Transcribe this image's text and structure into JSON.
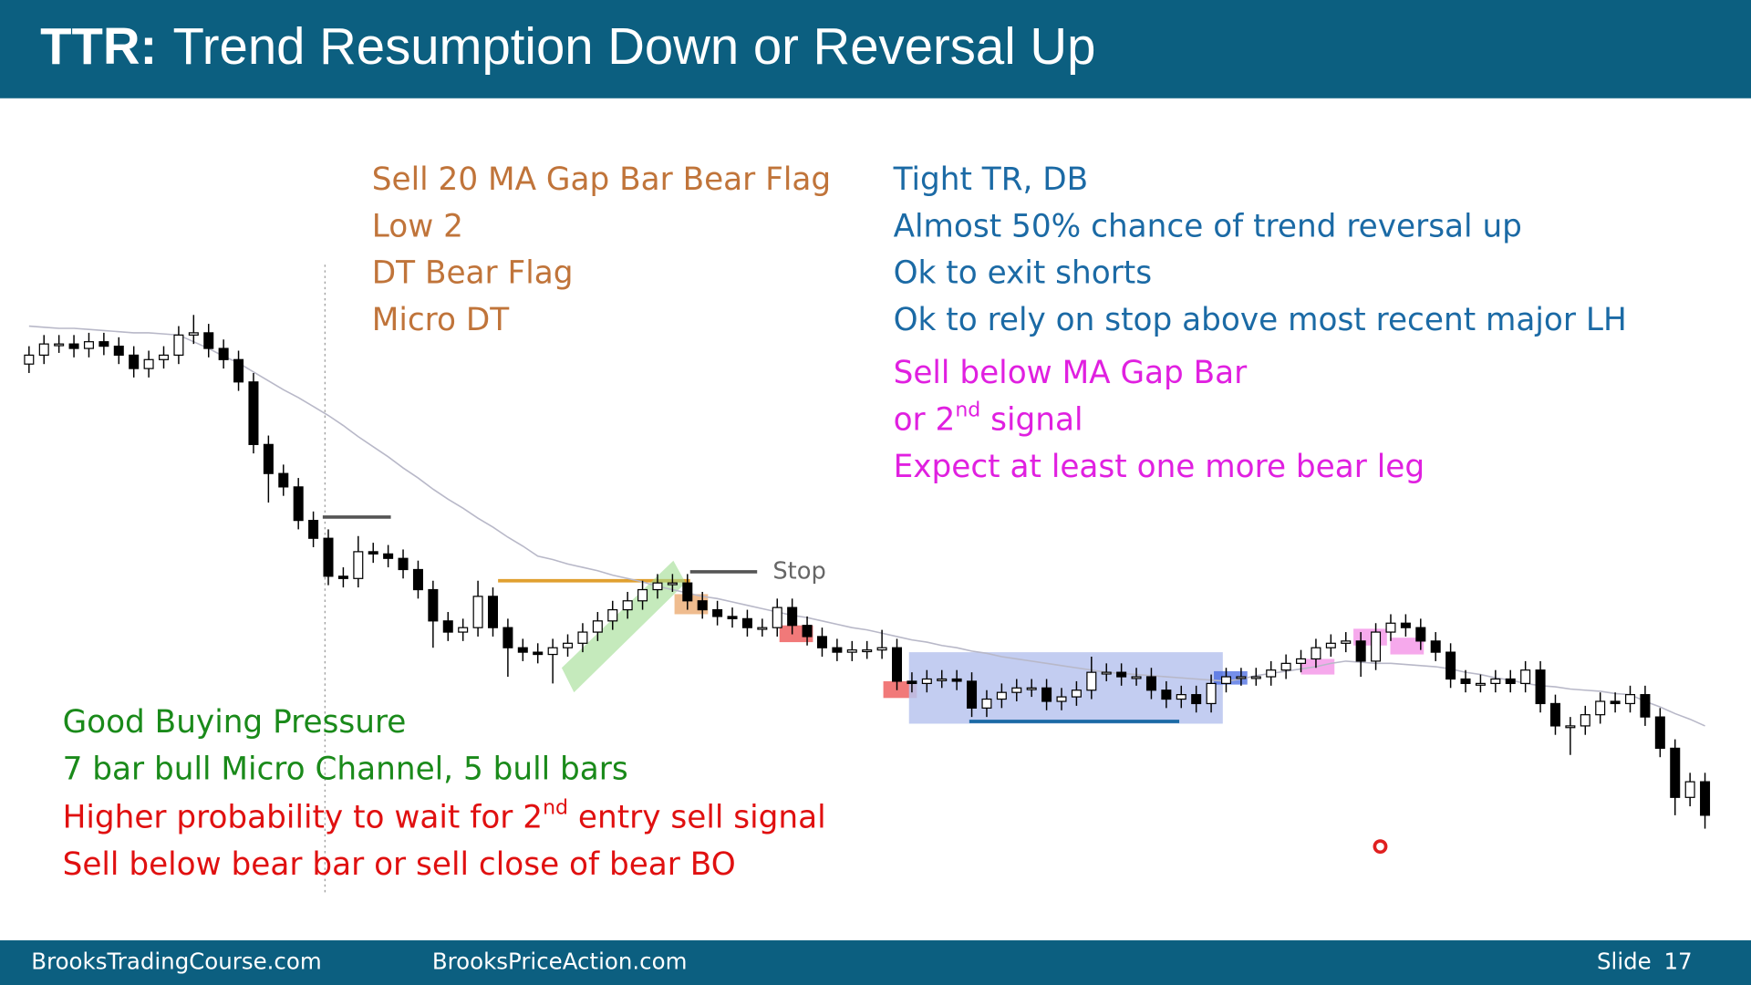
{
  "header": {
    "title_bold": "TTR:",
    "title": "Trend Resumption Down or Reversal Up"
  },
  "notes": {
    "orange": [
      "Sell 20 MA Gap Bar Bear Flag",
      "Low 2",
      "DT Bear Flag",
      "Micro DT"
    ],
    "blue": [
      "Tight TR, DB",
      "Almost 50% chance of trend reversal up",
      "Ok to exit shorts",
      "Ok to rely on stop above most recent major LH"
    ],
    "magenta": [
      [
        "Sell below MA Gap Bar"
      ],
      [
        "or 2",
        "nd",
        " signal"
      ],
      [
        "Expect at least one more bear leg"
      ]
    ],
    "green": [
      "Good Buying Pressure",
      "7 bar bull Micro Channel, 5 bull bars"
    ],
    "red": [
      [
        "Higher probability to wait for 2",
        "nd",
        " entry sell signal"
      ],
      [
        "Sell below bear bar or sell close of bear BO"
      ]
    ],
    "stop": "Stop"
  },
  "footer": {
    "left": "BrooksTradingCourse.com",
    "middle": "BrooksPriceAction.com",
    "slide": "Slide",
    "number": "17"
  },
  "chart_data": {
    "type": "candlestick",
    "ylim": [
      0,
      50
    ],
    "bull_color": "#ffffff",
    "bear_color": "#000000",
    "ma_color": "#b8b8c8",
    "open": [
      43.4,
      44.2,
      45.2,
      45.2,
      44.8,
      45.4,
      45.0,
      44.2,
      43.0,
      43.8,
      44.2,
      46.0,
      46.2,
      44.8,
      43.8,
      41.8,
      36.2,
      33.6,
      32.4,
      29.4,
      27.8,
      24.4,
      24.2,
      26.6,
      26.4,
      26.0,
      25.0,
      23.2,
      20.4,
      19.4,
      19.8,
      22.6,
      19.8,
      18.0,
      17.6,
      17.4,
      18.0,
      18.4,
      19.4,
      20.4,
      21.4,
      22.2,
      23.2,
      23.8,
      23.8,
      22.2,
      21.4,
      20.8,
      20.6,
      19.8,
      19.8,
      21.6,
      20.0,
      19.0,
      18.0,
      17.6,
      17.8,
      17.8,
      18.0,
      15.0,
      14.8,
      15.2,
      15.2,
      15.0,
      12.6,
      13.4,
      14.0,
      14.4,
      14.4,
      13.2,
      13.6,
      14.2,
      15.8,
      15.8,
      15.4,
      15.4,
      14.2,
      13.4,
      13.8,
      13.0,
      14.8,
      15.4,
      15.4,
      15.4,
      16.0,
      16.6,
      17.0,
      18.0,
      18.4,
      18.6,
      16.8,
      19.4,
      20.2,
      19.8,
      18.6,
      17.6,
      15.2,
      14.8,
      14.8,
      15.2,
      14.8,
      16.0,
      13.0,
      11.0,
      11.0,
      12.0,
      13.2,
      13.0,
      13.8,
      11.8,
      9.0,
      4.6,
      6.0
    ],
    "high": [
      45.0,
      46.0,
      46.0,
      46.0,
      46.2,
      46.2,
      45.8,
      45.0,
      44.6,
      45.0,
      46.8,
      47.8,
      47.0,
      45.6,
      44.6,
      42.6,
      37.0,
      34.4,
      33.2,
      30.2,
      28.6,
      25.2,
      28.0,
      27.4,
      27.2,
      26.8,
      25.8,
      24.0,
      21.2,
      20.6,
      24.0,
      23.4,
      20.6,
      18.8,
      18.4,
      18.8,
      19.2,
      20.2,
      21.2,
      22.2,
      23.0,
      24.0,
      24.6,
      24.6,
      24.6,
      23.0,
      22.2,
      21.6,
      21.4,
      20.6,
      22.4,
      22.4,
      20.8,
      19.8,
      18.8,
      18.6,
      18.6,
      19.6,
      18.8,
      15.8,
      16.0,
      16.0,
      16.0,
      15.8,
      14.2,
      14.8,
      15.2,
      15.2,
      15.2,
      14.4,
      15.0,
      17.2,
      16.6,
      16.6,
      16.2,
      16.2,
      15.0,
      14.6,
      14.6,
      15.6,
      16.2,
      16.2,
      16.2,
      16.8,
      17.4,
      17.8,
      18.8,
      19.2,
      19.4,
      19.4,
      20.2,
      21.0,
      21.0,
      20.6,
      19.4,
      18.4,
      16.0,
      15.6,
      16.0,
      16.0,
      16.8,
      16.8,
      13.8,
      11.8,
      12.8,
      14.0,
      14.0,
      14.6,
      14.6,
      12.6,
      9.8,
      6.8,
      6.8
    ],
    "low": [
      42.6,
      43.4,
      44.4,
      44.0,
      44.0,
      44.2,
      43.4,
      42.2,
      42.2,
      43.0,
      43.4,
      45.2,
      44.0,
      43.0,
      41.0,
      35.4,
      31.0,
      31.6,
      28.6,
      27.0,
      23.6,
      23.4,
      23.4,
      25.6,
      25.2,
      24.2,
      22.4,
      18.0,
      18.6,
      18.6,
      19.0,
      19.0,
      15.4,
      16.8,
      16.6,
      14.8,
      17.2,
      17.6,
      18.6,
      19.6,
      20.6,
      21.4,
      22.4,
      23.0,
      21.4,
      20.6,
      20.0,
      19.8,
      19.0,
      19.0,
      19.0,
      19.2,
      18.2,
      17.2,
      16.8,
      16.8,
      17.0,
      17.0,
      14.2,
      14.0,
      14.0,
      14.4,
      14.2,
      11.8,
      11.8,
      12.6,
      13.2,
      13.6,
      12.4,
      12.4,
      12.8,
      13.4,
      15.0,
      14.6,
      14.6,
      13.4,
      12.6,
      12.6,
      12.2,
      12.2,
      14.0,
      14.6,
      14.6,
      14.6,
      15.2,
      15.8,
      16.2,
      17.2,
      17.6,
      15.4,
      16.0,
      18.6,
      19.0,
      17.8,
      16.8,
      14.4,
      14.0,
      14.0,
      14.0,
      14.0,
      14.0,
      12.2,
      10.2,
      8.4,
      10.2,
      11.2,
      12.2,
      12.2,
      11.0,
      8.2,
      3.0,
      3.8,
      1.8
    ],
    "close": [
      44.2,
      45.2,
      45.2,
      44.8,
      45.4,
      45.0,
      44.2,
      43.0,
      43.8,
      44.2,
      46.0,
      46.2,
      44.8,
      43.8,
      41.8,
      36.2,
      33.6,
      32.4,
      29.4,
      27.8,
      24.4,
      24.2,
      26.6,
      26.4,
      26.0,
      25.0,
      23.2,
      20.4,
      19.4,
      19.8,
      22.6,
      19.8,
      18.0,
      17.6,
      17.4,
      18.0,
      18.4,
      19.4,
      20.4,
      21.4,
      22.2,
      23.2,
      23.8,
      23.8,
      22.2,
      21.4,
      20.8,
      20.6,
      19.8,
      19.8,
      21.6,
      20.0,
      19.0,
      18.0,
      17.6,
      17.8,
      17.8,
      18.0,
      15.0,
      14.8,
      15.2,
      15.2,
      15.0,
      12.6,
      13.4,
      14.0,
      14.4,
      14.4,
      13.2,
      13.6,
      14.2,
      15.8,
      15.8,
      15.4,
      15.4,
      14.2,
      13.4,
      13.8,
      13.0,
      14.8,
      15.4,
      15.4,
      15.4,
      16.0,
      16.6,
      17.0,
      18.0,
      18.4,
      18.6,
      16.8,
      19.4,
      20.2,
      19.8,
      18.6,
      17.6,
      15.2,
      14.8,
      14.8,
      15.2,
      14.8,
      16.0,
      13.0,
      11.0,
      11.0,
      12.0,
      13.2,
      13.0,
      13.8,
      11.8,
      9.0,
      4.6,
      6.0,
      3.0
    ],
    "ma": [
      46.8,
      46.7,
      46.6,
      46.6,
      46.5,
      46.4,
      46.3,
      46.2,
      46.2,
      46.1,
      46.0,
      45.4,
      44.8,
      44.1,
      43.5,
      42.7,
      41.9,
      41.1,
      40.4,
      39.6,
      38.8,
      37.9,
      36.9,
      36.0,
      35.1,
      34.1,
      33.2,
      32.2,
      31.3,
      30.5,
      29.6,
      28.8,
      27.9,
      27.1,
      26.2,
      25.9,
      25.5,
      25.2,
      24.9,
      24.5,
      24.2,
      23.9,
      23.5,
      23.2,
      22.9,
      22.6,
      22.4,
      22.1,
      21.8,
      21.5,
      21.2,
      20.9,
      20.7,
      20.4,
      20.1,
      19.8,
      19.6,
      19.3,
      19.0,
      18.7,
      18.5,
      18.2,
      18.0,
      17.7,
      17.5,
      17.2,
      17.0,
      16.8,
      16.6,
      16.4,
      16.2,
      16.0,
      15.8,
      15.7,
      15.6,
      15.5,
      15.4,
      15.3,
      15.2,
      15.1,
      15.0,
      15.2,
      15.5,
      15.7,
      15.9,
      16.1,
      16.3,
      16.6,
      16.8,
      16.7,
      16.6,
      16.6,
      16.5,
      16.4,
      16.3,
      16.1,
      15.8,
      15.6,
      15.3,
      15.1,
      14.8,
      14.6,
      14.5,
      14.3,
      14.2,
      14.1,
      13.9,
      13.8,
      13.2,
      12.7,
      12.1,
      11.6,
      11.0
    ]
  }
}
